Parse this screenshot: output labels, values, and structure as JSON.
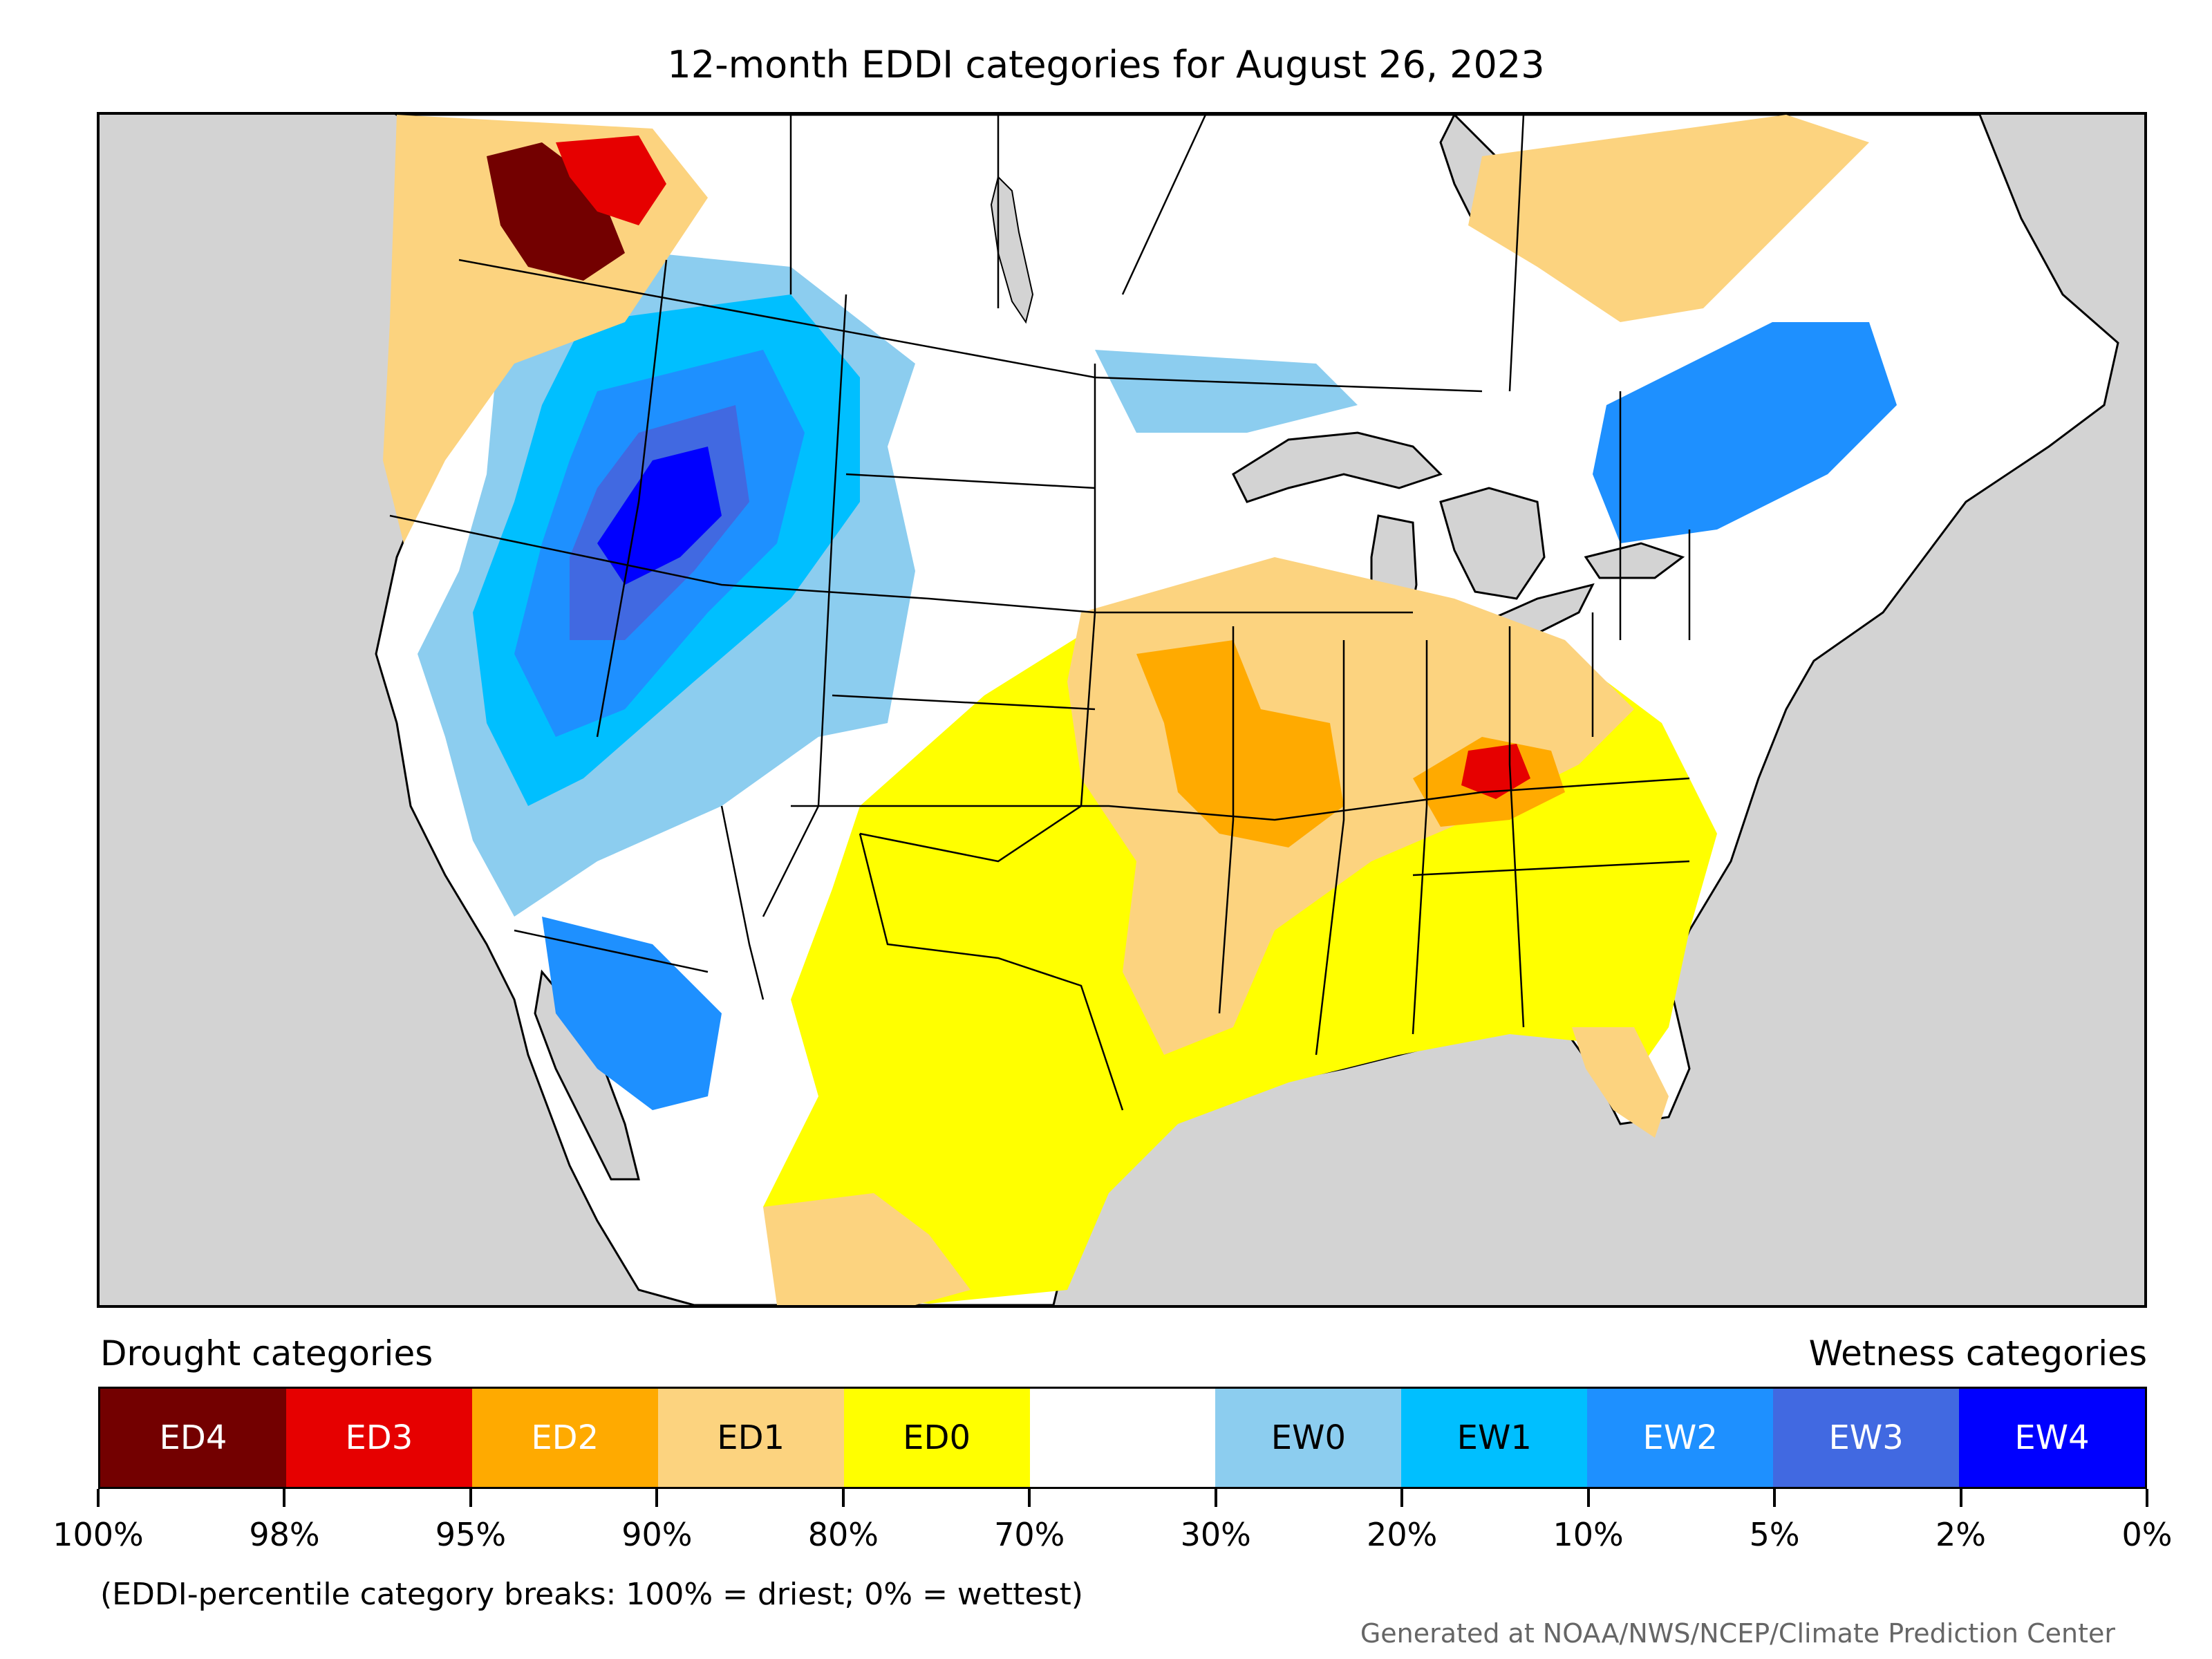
{
  "title": "12-month EDDI categories for August 26, 2023",
  "legend": {
    "drought_heading": "Drought categories",
    "wetness_heading": "Wetness categories",
    "categories": [
      {
        "label": "ED4",
        "color": "#730000",
        "text_color": "#ffffff"
      },
      {
        "label": "ED3",
        "color": "#e60000",
        "text_color": "#ffffff"
      },
      {
        "label": "ED2",
        "color": "#ffaa00",
        "text_color": "#ffffff"
      },
      {
        "label": "ED1",
        "color": "#fcd37f",
        "text_color": "#000000"
      },
      {
        "label": "ED0",
        "color": "#ffff00",
        "text_color": "#000000"
      },
      {
        "label": "",
        "color": "#ffffff",
        "text_color": "#000000"
      },
      {
        "label": "EW0",
        "color": "#8ccdef",
        "text_color": "#000000"
      },
      {
        "label": "EW1",
        "color": "#00bfff",
        "text_color": "#000000"
      },
      {
        "label": "EW2",
        "color": "#1e90ff",
        "text_color": "#ffffff"
      },
      {
        "label": "EW3",
        "color": "#4169e1",
        "text_color": "#ffffff"
      },
      {
        "label": "EW4",
        "color": "#0000ff",
        "text_color": "#ffffff"
      }
    ],
    "ticks": [
      "100%",
      "98%",
      "95%",
      "90%",
      "80%",
      "70%",
      "30%",
      "20%",
      "10%",
      "5%",
      "2%",
      "0%"
    ]
  },
  "footnote": "(EDDI-percentile category breaks: 100% = driest; 0% = wettest)",
  "credit": "Generated at NOAA/NWS/NCEP/Climate Prediction Center",
  "map": {
    "ocean_color": "#d3d3d3",
    "land_color": "#ffffff",
    "boundary_color": "#000000"
  }
}
